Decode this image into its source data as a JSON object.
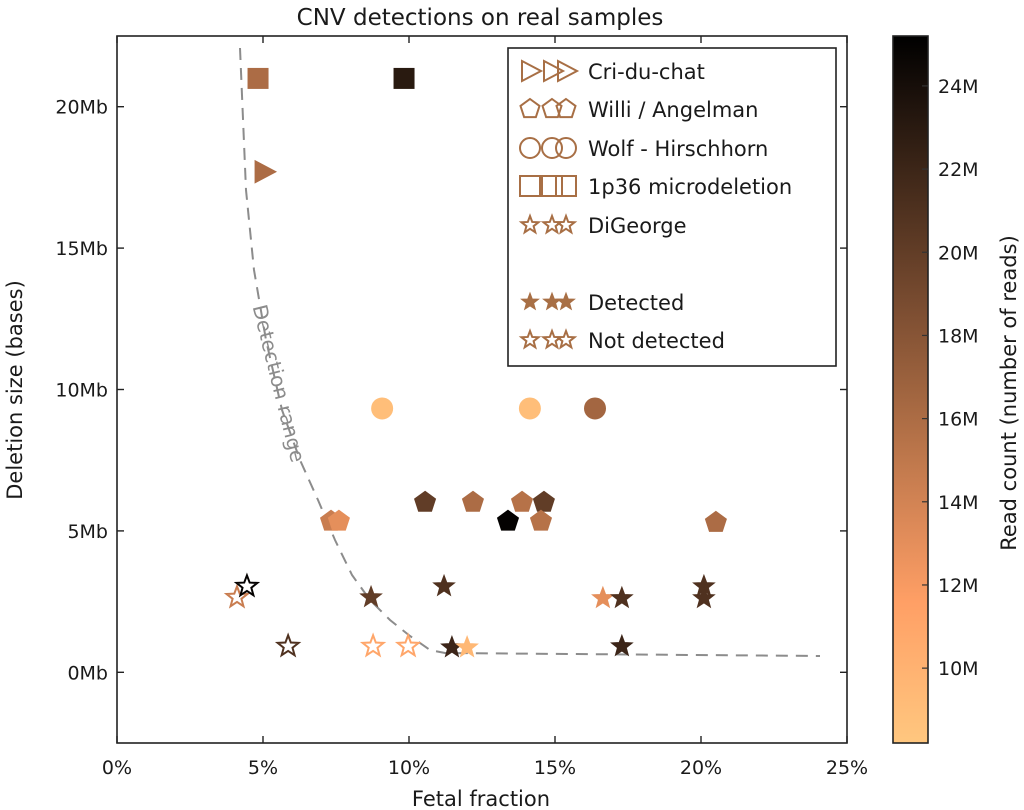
{
  "chart_data": {
    "type": "scatter",
    "title": "CNV detections on real samples",
    "xlabel": "Fetal fraction",
    "ylabel": "Deletion size (bases)",
    "xlim": [
      0,
      25
    ],
    "ylim": [
      -2.5,
      22.5
    ],
    "x_unit": "%",
    "y_unit": "Mb",
    "xticks": [
      0,
      5,
      10,
      15,
      20,
      25
    ],
    "xtick_labels": [
      "0%",
      "5%",
      "10%",
      "15%",
      "20%",
      "25%"
    ],
    "yticks": [
      0,
      5,
      10,
      15,
      20
    ],
    "ytick_labels": [
      "0Mb",
      "5Mb",
      "10Mb",
      "15Mb",
      "20Mb"
    ],
    "grid": false,
    "colorbar": {
      "label": "Read count (number of reads)",
      "colormap": "copper_r",
      "range": [
        8.2,
        25.2
      ],
      "unit": "M",
      "low_color": "#ffc77f",
      "high_color": "#000000",
      "ticks": [
        10,
        12,
        14,
        16,
        18,
        20,
        22,
        24
      ],
      "tick_labels": [
        "10M",
        "12M",
        "14M",
        "16M",
        "18M",
        "20M",
        "22M",
        "24M"
      ]
    },
    "annotation": {
      "text": "Detection range",
      "curve": [
        [
          4.2,
          22.1
        ],
        [
          4.4,
          16.7
        ],
        [
          4.8,
          13.2
        ],
        [
          5.0,
          14.2
        ],
        [
          5.6,
          9.0
        ],
        [
          6.6,
          6.0
        ],
        [
          7.1,
          5.8
        ],
        [
          7.8,
          4.0
        ],
        [
          8.7,
          2.6
        ],
        [
          9.7,
          1.6
        ],
        [
          10.6,
          0.9
        ],
        [
          11.0,
          0.75
        ],
        [
          24.0,
          0.6
        ]
      ]
    },
    "legend": {
      "placement": "top-right",
      "entries": [
        {
          "label": "Cri-du-chat",
          "marker": "triangle-right",
          "style": "hollow"
        },
        {
          "label": "Willi / Angelman",
          "marker": "pentagon",
          "style": "hollow"
        },
        {
          "label": "Wolf - Hirschhorn",
          "marker": "circle",
          "style": "hollow"
        },
        {
          "label": "1p36 microdeletion",
          "marker": "square",
          "style": "hollow"
        },
        {
          "label": "DiGeorge",
          "marker": "star",
          "style": "hollow"
        },
        {
          "label": "",
          "marker": "none",
          "style": "spacer"
        },
        {
          "label": "Detected",
          "marker": "star",
          "style": "filled"
        },
        {
          "label": "Not detected",
          "marker": "star",
          "style": "hollow"
        }
      ],
      "marker_color": "#a86f45"
    },
    "series": [
      {
        "name": "1p36 microdeletion",
        "marker": "square",
        "points": [
          {
            "x": 4.83,
            "y": 21.0,
            "reads": 16.0,
            "detected": true
          },
          {
            "x": 9.83,
            "y": 21.0,
            "reads": 23.0,
            "detected": true
          }
        ]
      },
      {
        "name": "Cri-du-chat",
        "marker": "triangle-right",
        "points": [
          {
            "x": 5.03,
            "y": 17.7,
            "reads": 16.0,
            "detected": true
          }
        ]
      },
      {
        "name": "Wolf - Hirschhorn",
        "marker": "circle",
        "points": [
          {
            "x": 9.08,
            "y": 9.33,
            "reads": 9.0,
            "detected": true
          },
          {
            "x": 14.14,
            "y": 9.33,
            "reads": 9.0,
            "detected": true
          },
          {
            "x": 16.37,
            "y": 9.33,
            "reads": 16.5,
            "detected": true
          }
        ]
      },
      {
        "name": "Willi / Angelman",
        "marker": "pentagon",
        "points": [
          {
            "x": 7.33,
            "y": 5.34,
            "reads": 14.5,
            "detected": true
          },
          {
            "x": 7.6,
            "y": 5.34,
            "reads": 13.0,
            "detected": true
          },
          {
            "x": 10.55,
            "y": 6.01,
            "reads": 20.0,
            "detected": true
          },
          {
            "x": 12.19,
            "y": 6.01,
            "reads": 16.0,
            "detected": true
          },
          {
            "x": 13.87,
            "y": 6.01,
            "reads": 15.5,
            "detected": true
          },
          {
            "x": 14.62,
            "y": 6.01,
            "reads": 20.0,
            "detected": true
          },
          {
            "x": 13.39,
            "y": 5.34,
            "reads": 25.0,
            "detected": true
          },
          {
            "x": 14.52,
            "y": 5.34,
            "reads": 15.5,
            "detected": true
          },
          {
            "x": 20.51,
            "y": 5.3,
            "reads": 16.0,
            "detected": true
          }
        ]
      },
      {
        "name": "DiGeorge",
        "marker": "star",
        "points": [
          {
            "x": 4.11,
            "y": 2.65,
            "reads": 14.5,
            "detected": false
          },
          {
            "x": 4.45,
            "y": 3.04,
            "reads": 25.0,
            "detected": false
          },
          {
            "x": 5.86,
            "y": 0.92,
            "reads": 21.0,
            "detected": false
          },
          {
            "x": 8.7,
            "y": 2.65,
            "reads": 20.0,
            "detected": true
          },
          {
            "x": 8.77,
            "y": 0.92,
            "reads": 11.0,
            "detected": false
          },
          {
            "x": 9.97,
            "y": 0.92,
            "reads": 11.0,
            "detected": false
          },
          {
            "x": 11.2,
            "y": 3.04,
            "reads": 21.0,
            "detected": true
          },
          {
            "x": 11.47,
            "y": 0.88,
            "reads": 22.0,
            "detected": true
          },
          {
            "x": 11.99,
            "y": 0.88,
            "reads": 9.5,
            "detected": true
          },
          {
            "x": 16.64,
            "y": 2.62,
            "reads": 13.0,
            "detected": true
          },
          {
            "x": 17.29,
            "y": 2.62,
            "reads": 21.0,
            "detected": true
          },
          {
            "x": 17.29,
            "y": 0.92,
            "reads": 22.0,
            "detected": true
          },
          {
            "x": 20.1,
            "y": 3.04,
            "reads": 21.0,
            "detected": true
          },
          {
            "x": 20.1,
            "y": 2.62,
            "reads": 21.0,
            "detected": true
          }
        ]
      }
    ]
  }
}
